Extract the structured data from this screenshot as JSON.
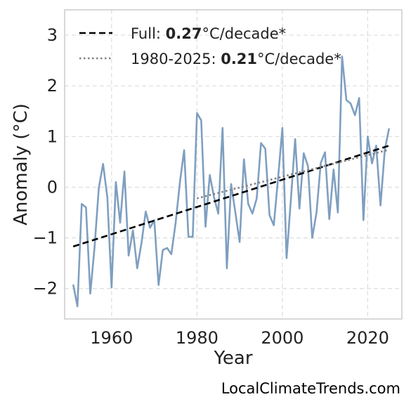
{
  "chart_data": {
    "type": "line",
    "xlabel": "Year",
    "ylabel": "Anomaly (°C)",
    "xlim": [
      1949,
      2028
    ],
    "ylim": [
      -2.6,
      3.5
    ],
    "xticks": [
      1960,
      1980,
      2000,
      2020
    ],
    "xtick_labels": [
      "1960",
      "1980",
      "2000",
      "2020"
    ],
    "yticks": [
      -2,
      -1,
      0,
      1,
      2,
      3
    ],
    "ytick_labels": [
      "−2",
      "−1",
      "0",
      "1",
      "2",
      "3"
    ],
    "grid": true,
    "legend_position": "top-left",
    "series": [
      {
        "style": "solid",
        "color": "#7f9fc0",
        "x": [
          1951,
          1952,
          1953,
          1954,
          1955,
          1956,
          1957,
          1958,
          1959,
          1960,
          1961,
          1962,
          1963,
          1964,
          1965,
          1966,
          1967,
          1968,
          1969,
          1970,
          1971,
          1972,
          1973,
          1974,
          1975,
          1976,
          1977,
          1978,
          1979,
          1980,
          1981,
          1982,
          1983,
          1984,
          1985,
          1986,
          1987,
          1988,
          1989,
          1990,
          1991,
          1992,
          1993,
          1994,
          1995,
          1996,
          1997,
          1998,
          1999,
          2000,
          2001,
          2002,
          2003,
          2004,
          2005,
          2006,
          2007,
          2008,
          2009,
          2010,
          2011,
          2012,
          2013,
          2014,
          2015,
          2016,
          2017,
          2018,
          2019,
          2020,
          2021,
          2022,
          2023,
          2024,
          2025
        ],
        "values": [
          -1.92,
          -2.35,
          -0.33,
          -0.4,
          -2.1,
          -1.2,
          -0.02,
          0.46,
          -0.2,
          -1.98,
          0.1,
          -0.7,
          0.31,
          -1.35,
          -0.85,
          -1.6,
          -1.1,
          -0.48,
          -0.8,
          -0.65,
          -1.93,
          -1.24,
          -1.2,
          -1.32,
          -0.7,
          0.1,
          0.73,
          -0.98,
          -0.98,
          1.46,
          1.32,
          -0.78,
          0.24,
          -0.2,
          -0.52,
          1.17,
          -1.6,
          0.06,
          -0.5,
          -1.08,
          0.55,
          -0.33,
          -0.52,
          -0.22,
          0.87,
          0.76,
          -0.55,
          -0.75,
          0.18,
          1.17,
          -1.4,
          -0.25,
          0.95,
          -0.42,
          0.67,
          0.42,
          -1.0,
          -0.5,
          0.48,
          0.69,
          -0.63,
          0.35,
          -0.5,
          2.58,
          1.72,
          1.65,
          1.42,
          1.76,
          -0.65,
          1.0,
          0.47,
          0.82,
          -0.36,
          0.74,
          1.16
        ]
      }
    ],
    "trendlines": [
      {
        "label_prefix": "Full: ",
        "label_value": "0.27",
        "label_suffix": "°C/decade*",
        "style": "dashed",
        "color": "#000000",
        "x": [
          1951,
          2025
        ],
        "values": [
          -1.17,
          0.82
        ]
      },
      {
        "label_prefix": "1980-2025: ",
        "label_value": "0.21",
        "label_suffix": "°C/decade*",
        "style": "dotted",
        "color": "#808080",
        "x": [
          1980,
          2025
        ],
        "values": [
          -0.22,
          0.74
        ]
      }
    ]
  },
  "footer": {
    "credit": "LocalClimateTrends.com"
  }
}
